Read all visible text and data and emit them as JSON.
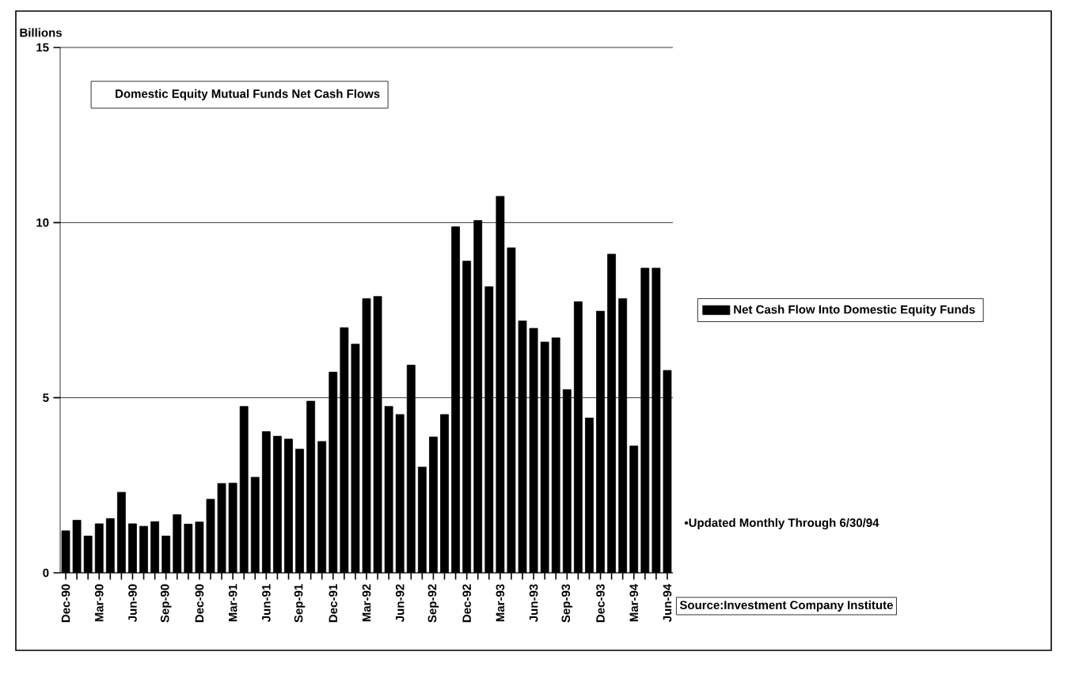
{
  "chart_data": {
    "type": "bar",
    "title": "Domestic Equity Mutual Funds Net Cash Flows",
    "ylabel": "Billions",
    "categories": [
      "Dec-90",
      null,
      null,
      "Mar-90",
      null,
      null,
      "Jun-90",
      null,
      null,
      "Sep-90",
      null,
      null,
      "Dec-90",
      null,
      null,
      "Mar-91",
      null,
      null,
      "Jun-91",
      null,
      null,
      "Sep-91",
      null,
      null,
      "Dec-91",
      null,
      null,
      "Mar-92",
      null,
      null,
      "Jun-92",
      null,
      null,
      "Sep-92",
      null,
      null,
      "Dec-92",
      null,
      null,
      "Mar-93",
      null,
      null,
      "Jun-93",
      null,
      null,
      "Sep-93",
      null,
      null,
      "Dec-93",
      null,
      null,
      "Mar-94",
      null,
      null,
      "Jun-94"
    ],
    "series": [
      {
        "name": "Net Cash Flow Into Domestic Equity Funds",
        "color": "#000000",
        "values": [
          1.2,
          1.5,
          1.05,
          1.4,
          1.55,
          2.3,
          1.4,
          1.33,
          1.46,
          1.05,
          1.66,
          1.39,
          1.45,
          2.1,
          2.55,
          2.56,
          4.75,
          2.73,
          4.03,
          3.9,
          3.82,
          3.53,
          4.9,
          3.75,
          5.73,
          7.0,
          6.53,
          7.83,
          7.89,
          4.75,
          4.52,
          5.93,
          3.02,
          3.88,
          4.52,
          9.88,
          8.9,
          10.06,
          8.17,
          10.75,
          9.28,
          7.19,
          6.98,
          6.59,
          6.71,
          5.23,
          7.74,
          4.42,
          7.47,
          9.1,
          7.83,
          3.62,
          8.7,
          8.7,
          5.78
        ]
      }
    ],
    "ylim": [
      0,
      15
    ],
    "yticks": [
      0,
      5,
      10,
      15
    ],
    "grid": "y",
    "legend": "right",
    "annotations": [
      "•Updated Monthly Through 6/30/94",
      "Source:Investment Company Institute"
    ]
  }
}
